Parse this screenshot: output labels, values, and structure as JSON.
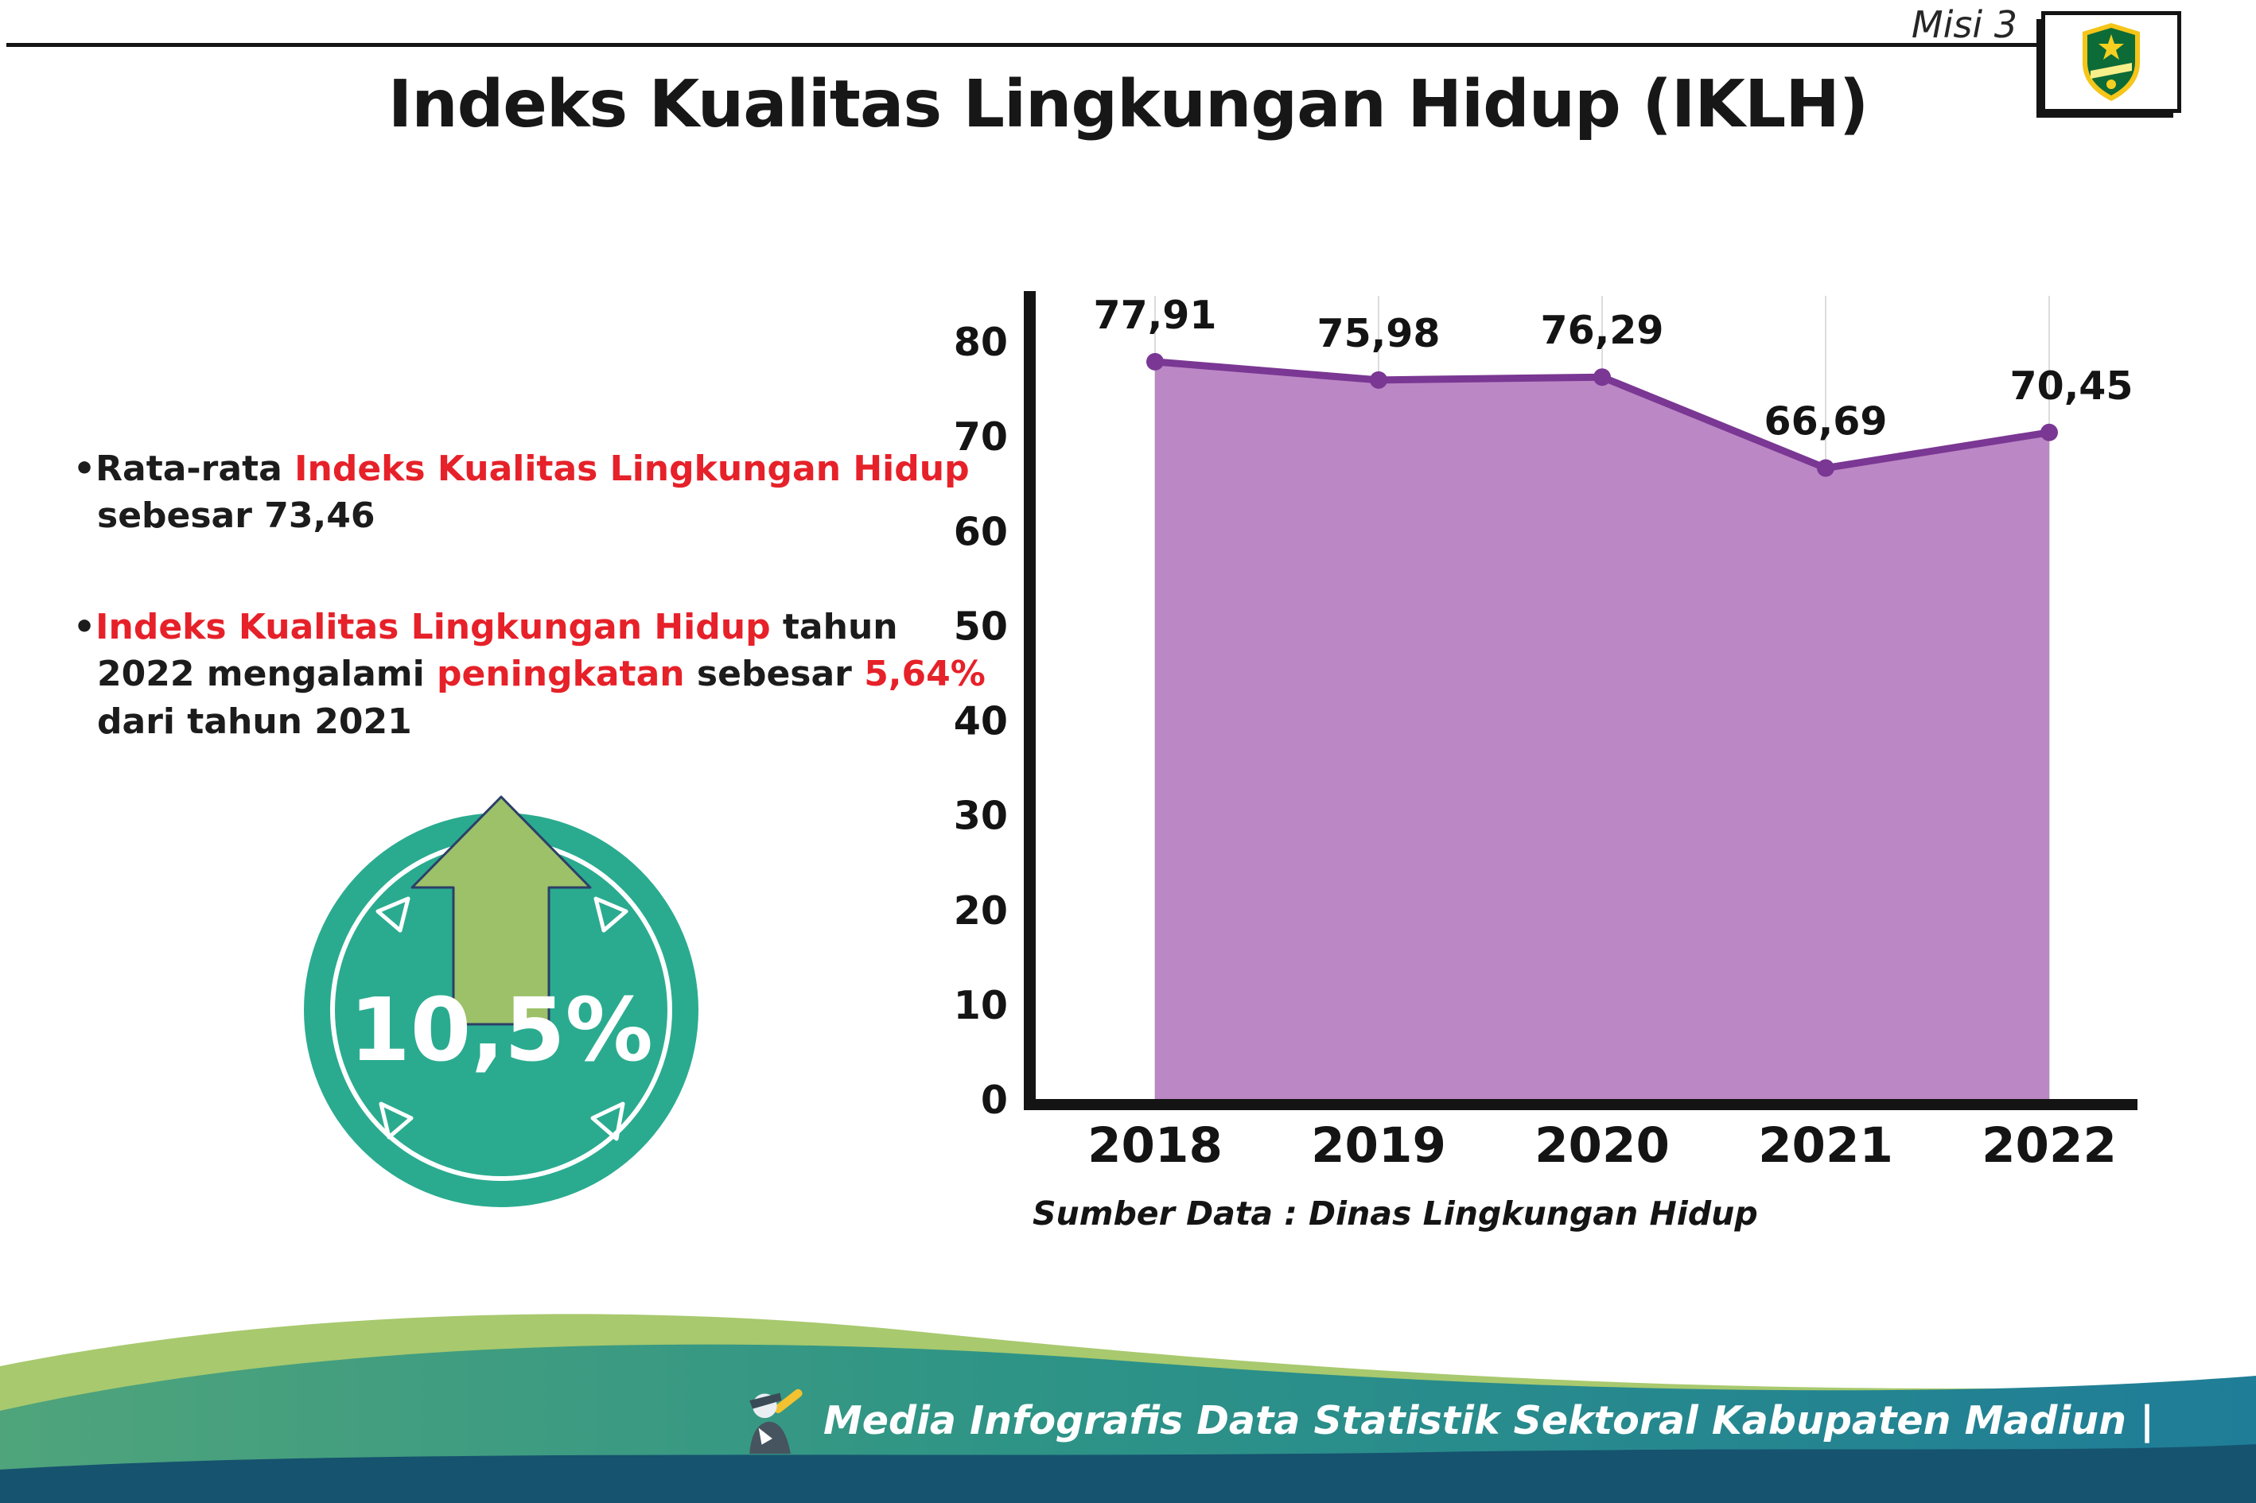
{
  "header": {
    "misi": "Misi 3",
    "title": "Indeks Kualitas Lingkungan Hidup (IKLH)"
  },
  "bullets": {
    "marker": "•",
    "b1_black1": "Rata-rata ",
    "b1_red": "Indeks Kualitas Lingkungan Hidup",
    "b1_black2": " sebesar 73,46",
    "b2_red1": "Indeks Kualitas Lingkungan Hidup",
    "b2_black1": " tahun 2022 mengalami ",
    "b2_red2": "peningkatan",
    "b2_black2": " sebesar ",
    "b2_red3": "5,64%",
    "b2_black3": " dari tahun 2021"
  },
  "badge": {
    "value": "10,5%"
  },
  "chart_data": {
    "type": "area",
    "title": "Indeks Kualitas Lingkungan Hidup (IKLH)",
    "categories": [
      "2018",
      "2019",
      "2020",
      "2021",
      "2022"
    ],
    "values": [
      77.91,
      75.98,
      76.29,
      66.69,
      70.45
    ],
    "value_labels": [
      "77,91",
      "75,98",
      "76,29",
      "66,69",
      "70,45"
    ],
    "ylim": [
      0,
      80
    ],
    "yticks": [
      0,
      10,
      20,
      30,
      40,
      50,
      60,
      70,
      80
    ],
    "xlabel": "",
    "ylabel": "",
    "grid": "vertical-light",
    "legend": "none",
    "fill_color": "#bb87c5",
    "line_color": "#7a3793",
    "source": "Sumber Data : Dinas Lingkungan Hidup"
  },
  "footer": {
    "caption": "Media Infografis Data Statistik Sektoral Kabupaten Madiun |"
  },
  "colors": {
    "accent_red": "#e62129",
    "badge_teal": "#2aab8f",
    "arrow_green": "#9cc168",
    "area_fill": "#bb87c5",
    "area_line": "#7a3793",
    "footer_light_green": "#a8c96e",
    "footer_teal": "#2e9486",
    "footer_blue": "#1f7d97",
    "footer_dark_band": "#16536f"
  }
}
